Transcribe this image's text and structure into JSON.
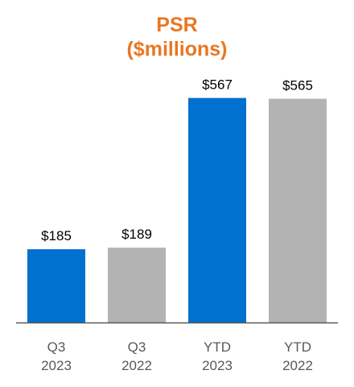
{
  "chart_data": {
    "type": "bar",
    "title": [
      "PSR",
      "($millions)"
    ],
    "categories": [
      [
        "Q3",
        "2023"
      ],
      [
        "Q3",
        "2022"
      ],
      [
        "YTD",
        "2023"
      ],
      [
        "YTD",
        "2022"
      ]
    ],
    "values": [
      185,
      189,
      567,
      565
    ],
    "value_labels": [
      "$185",
      "$189",
      "$567",
      "$565"
    ],
    "bar_colors": [
      "#0071CE",
      "#B3B3B3",
      "#0071CE",
      "#B3B3B3"
    ],
    "title_color": "#E87722",
    "ylim": [
      0,
      600
    ],
    "grid": false
  }
}
